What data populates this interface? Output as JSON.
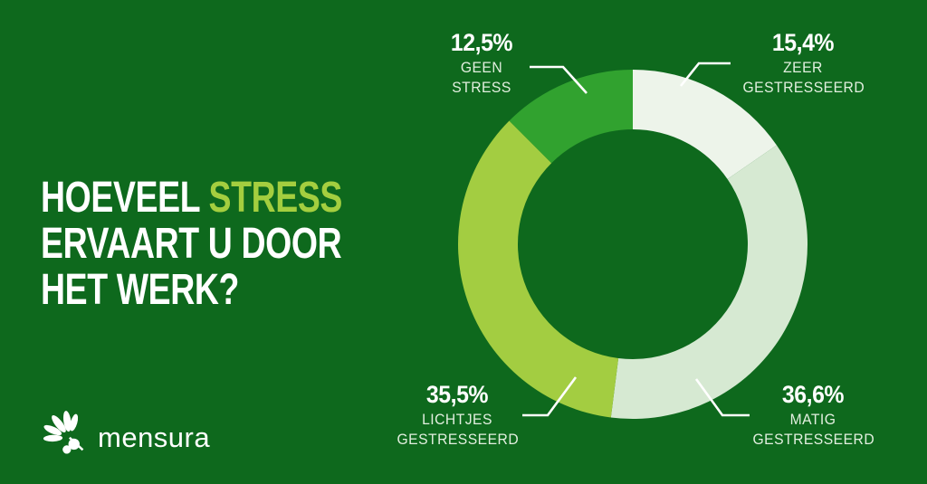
{
  "colors": {
    "background": "#0E691D",
    "accent": "#A4CE3F",
    "callout_line": "#FFFFFF",
    "percent_text": "#FFFFFF",
    "category_text": "#E2EFDF"
  },
  "title": {
    "line1_white": "HOEVEEL",
    "line1_accent": "STRESS",
    "line2": "ERVAART U DOOR",
    "line3": "HET WERK?"
  },
  "chart_data": {
    "type": "pie",
    "donut": true,
    "title": "HOEVEEL STRESS ERVAART U DOOR HET WERK?",
    "start_angle_deg": 0,
    "direction": "clockwise",
    "unit": "%",
    "segments": [
      {
        "label": "ZEER GESTRESSEERD",
        "display_label": "ZEER\nGESTRESSEERD",
        "value": 15.4,
        "display_value": "15,4%",
        "color": "#EDF4EA"
      },
      {
        "label": "MATIG GESTRESSEERD",
        "display_label": "MATIG\nGESTRESSEERD",
        "value": 36.6,
        "display_value": "36,6%",
        "color": "#D6E9D2"
      },
      {
        "label": "LICHTJES GESTRESSEERD",
        "display_label": "LICHTJES\nGESTRESSEERD",
        "value": 35.5,
        "display_value": "35,5%",
        "color": "#A3CD41"
      },
      {
        "label": "GEEN STRESS",
        "display_label": "GEEN\nSTRESS",
        "value": 12.5,
        "display_value": "12,5%",
        "color": "#31A22F"
      }
    ]
  },
  "logo": {
    "text": "mensura"
  }
}
